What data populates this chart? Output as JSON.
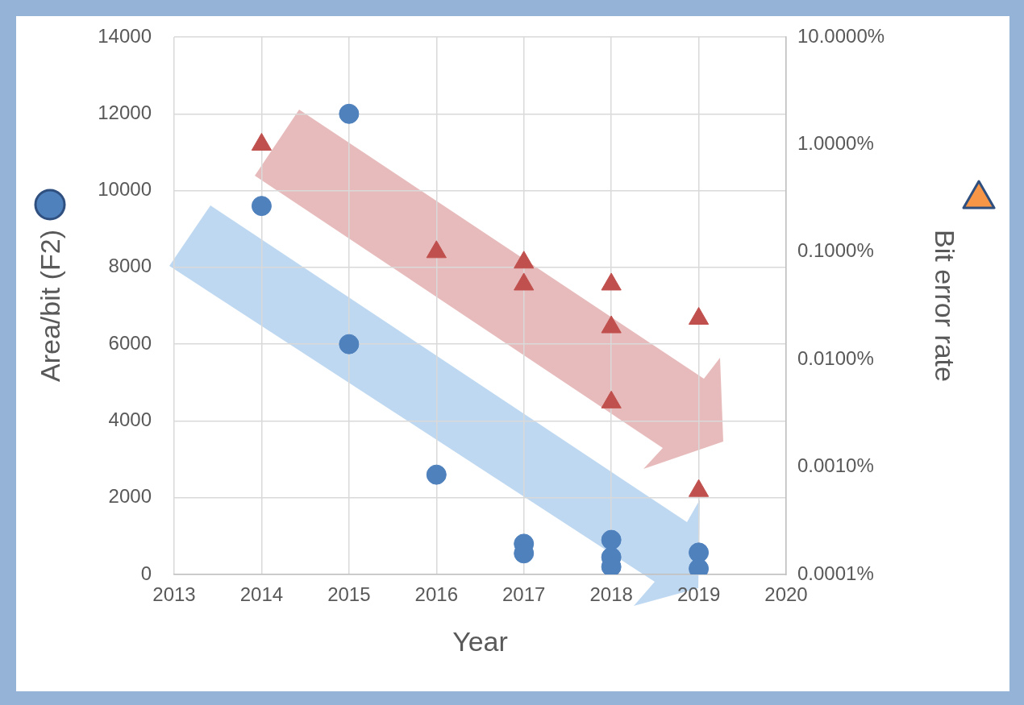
{
  "chart_data": {
    "type": "scatter",
    "xlabel": "Year",
    "ylabel": "Area/bit (F2)",
    "y2label": "Bit error rate",
    "xlim": [
      2013,
      2020
    ],
    "xticks": [
      2013,
      2014,
      2015,
      2016,
      2017,
      2018,
      2019,
      2020
    ],
    "ylim": [
      0,
      14000
    ],
    "yticks": [
      0,
      2000,
      4000,
      6000,
      8000,
      10000,
      12000,
      14000
    ],
    "y2lim": [
      0.0001,
      10
    ],
    "y2ticks": [
      {
        "value": 0.0001,
        "label": "0.0001%"
      },
      {
        "value": 0.001,
        "label": "0.0010%"
      },
      {
        "value": 0.01,
        "label": "0.0100%"
      },
      {
        "value": 0.1,
        "label": "0.1000%"
      },
      {
        "value": 1,
        "label": "1.0000%"
      },
      {
        "value": 10,
        "label": "10.0000%"
      }
    ],
    "log": "y2",
    "grid": true,
    "legend": false,
    "series": [
      {
        "color": "#4f81bd",
        "marker": "circle",
        "x": [
          2014,
          2015,
          2015,
          2016,
          2017,
          2017,
          2018,
          2018,
          2018,
          2019,
          2019
        ],
        "values": [
          9600,
          12000,
          6000,
          2600,
          800,
          550,
          900,
          450,
          200,
          570,
          150
        ]
      },
      {
        "color": "#c0504d",
        "marker": "triangle",
        "axis": "y2",
        "x": [
          2014,
          2016,
          2017,
          2017,
          2018,
          2018,
          2018,
          2019,
          2019
        ],
        "values": [
          1,
          0.1,
          0.08,
          0.05,
          0.05,
          0.02,
          0.004,
          0.024,
          0.0006
        ]
      }
    ]
  }
}
